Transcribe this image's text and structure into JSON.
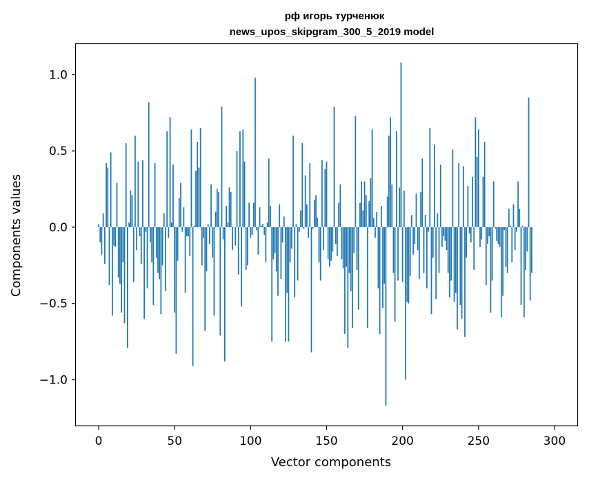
{
  "chart_data": {
    "type": "bar",
    "title": "рф игорь турченюк\nnews_upos_skipgram_300_5_2019 model",
    "title_lines": [
      "рф игорь турченюк",
      "news_upos_skipgram_300_5_2019 model"
    ],
    "xlabel": "Vector components",
    "ylabel": "Components values",
    "xlim": [
      -15,
      315
    ],
    "ylim": [
      -1.3,
      1.2
    ],
    "xticks": [
      0,
      50,
      100,
      150,
      200,
      250,
      300
    ],
    "xtick_labels": [
      "0",
      "50",
      "100",
      "150",
      "200",
      "250",
      "300"
    ],
    "yticks": [
      -1.0,
      -0.5,
      0.0,
      0.5,
      1.0
    ],
    "ytick_labels": [
      "−1.0",
      "−0.5",
      "0.0",
      "0.5",
      "1.0"
    ],
    "grid": false,
    "bar_color": "#1f77b4",
    "series": [
      {
        "x_start": 0,
        "x_step": 1,
        "values": [
          0.02,
          -0.1,
          -0.18,
          0.09,
          -0.24,
          0.42,
          0.39,
          -0.38,
          0.49,
          -0.58,
          -0.12,
          -0.13,
          0.29,
          -0.33,
          -0.37,
          -0.56,
          -0.23,
          -0.63,
          0.55,
          -0.79,
          0.03,
          0.24,
          0.21,
          -0.36,
          0.6,
          -0.15,
          0.43,
          -0.06,
          -0.24,
          0.44,
          -0.6,
          -0.03,
          -0.4,
          0.82,
          -0.1,
          -0.23,
          -0.51,
          0.42,
          -0.2,
          -0.3,
          -0.34,
          -0.57,
          -0.25,
          0.09,
          -0.42,
          0.63,
          -0.07,
          0.72,
          0.03,
          0.41,
          -0.56,
          -0.83,
          -0.22,
          0.19,
          0.29,
          -0.03,
          0.13,
          -0.43,
          -0.06,
          -0.06,
          -0.19,
          0.64,
          -0.91,
          0.01,
          0.37,
          0.56,
          0.39,
          0.65,
          -0.25,
          -0.07,
          -0.68,
          -0.29,
          0.02,
          -0.11,
          0.28,
          -0.2,
          -0.58,
          0.1,
          0.25,
          0.23,
          -0.71,
          0.79,
          -0.08,
          -0.88,
          0.14,
          0.03,
          0.26,
          0.23,
          -0.15,
          0.0,
          -0.12,
          0.5,
          -0.31,
          0.63,
          -0.52,
          0.64,
          0.43,
          -0.28,
          -0.25,
          0.16,
          -0.07,
          -0.05,
          0.16,
          0.98,
          -0.02,
          -0.18,
          0.13,
          0.01,
          0.02,
          -0.05,
          -0.23,
          0.03,
          0.45,
          0.14,
          -0.75,
          -0.21,
          -0.17,
          -0.29,
          -0.45,
          0.15,
          -0.34,
          -0.1,
          0.07,
          -0.75,
          -0.43,
          -0.75,
          -0.23,
          -0.14,
          0.6,
          -0.46,
          0.02,
          -0.35,
          -0.03,
          0.11,
          0.55,
          -0.01,
          0.34,
          0.15,
          -0.07,
          0.42,
          -0.82,
          -0.01,
          0.18,
          0.21,
          0.06,
          -0.23,
          -0.35,
          0.44,
          -0.15,
          0.38,
          0.43,
          -0.21,
          -0.26,
          -0.22,
          -0.16,
          0.79,
          -0.11,
          -0.19,
          0.16,
          0.28,
          -0.21,
          -0.27,
          -0.7,
          -0.26,
          -0.79,
          -0.3,
          -0.42,
          -0.66,
          -0.17,
          0.73,
          -0.28,
          -0.54,
          0.16,
          0.3,
          0.11,
          0.3,
          0.21,
          -0.66,
          0.17,
          0.32,
          0.64,
          0.06,
          -0.07,
          0.1,
          -0.4,
          -0.7,
          0.14,
          -0.53,
          -0.37,
          -1.17,
          0.2,
          0.6,
          0.72,
          0.28,
          -0.3,
          -0.62,
          0.63,
          -0.35,
          0.26,
          1.08,
          -0.36,
          0.24,
          -1.0,
          -0.49,
          -0.5,
          -0.32,
          0.08,
          -0.18,
          -0.11,
          0.22,
          -0.15,
          -0.34,
          0.23,
          0.45,
          -0.3,
          0.08,
          -0.4,
          -0.03,
          0.65,
          -0.57,
          -0.2,
          0.54,
          -0.47,
          0.09,
          -0.3,
          0.41,
          -0.13,
          -0.06,
          -0.09,
          -0.15,
          -0.3,
          -0.46,
          -0.35,
          0.51,
          -0.49,
          -0.43,
          -0.67,
          0.42,
          -0.51,
          -0.6,
          0.4,
          -0.72,
          -0.2,
          0.27,
          -0.04,
          -0.1,
          0.33,
          -0.28,
          0.72,
          0.46,
          0.64,
          -0.13,
          -0.08,
          0.33,
          0.56,
          -0.38,
          -0.11,
          -0.06,
          -0.56,
          -0.35,
          0.3,
          -0.01,
          -0.09,
          -0.11,
          -0.13,
          -0.59,
          -0.45,
          -0.02,
          -0.26,
          -0.3,
          0.12,
          0.01,
          -0.23,
          0.15,
          -0.15,
          -0.03,
          0.3,
          0.12,
          -0.51,
          0.01,
          -0.59,
          -0.28,
          -0.16,
          0.85,
          -0.48,
          -0.3
        ]
      }
    ]
  }
}
